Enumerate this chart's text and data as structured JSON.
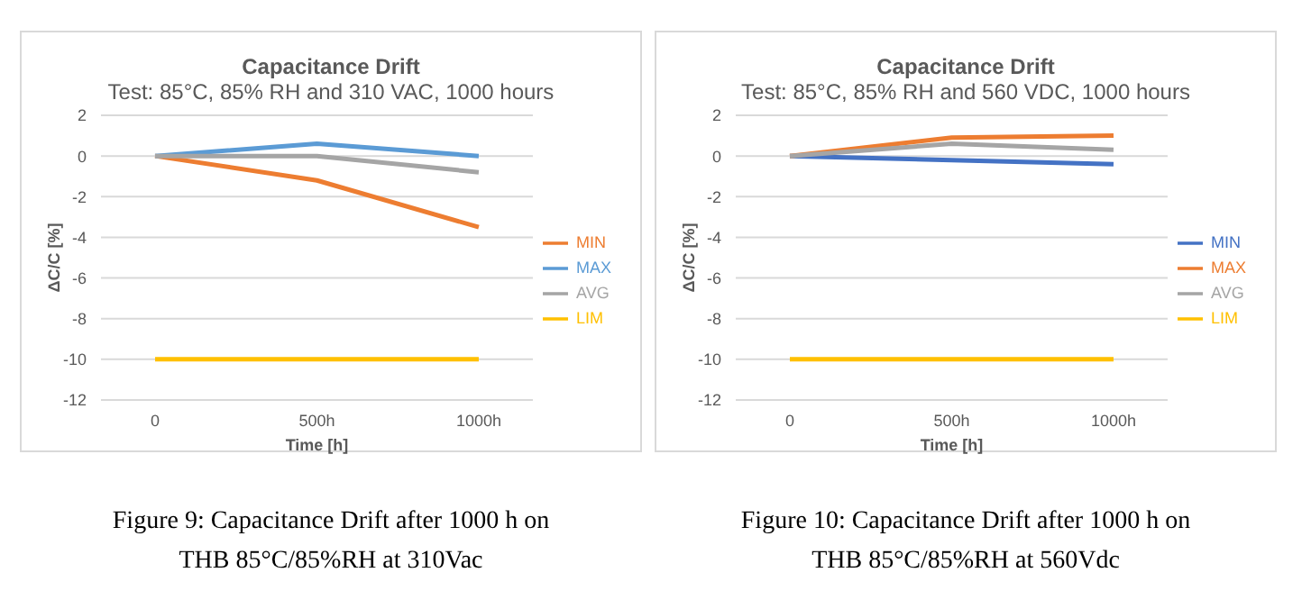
{
  "chart_data": [
    {
      "type": "line",
      "title": "Capacitance Drift",
      "subtitle": "Test: 85°C, 85% RH and 310 VAC, 1000 hours",
      "xlabel": "Time [h]",
      "ylabel": "ΔC/C [%]",
      "categories": [
        "0",
        "500h",
        "1000h"
      ],
      "series": [
        {
          "name": "MIN",
          "color": "#ed7d31",
          "values": [
            0,
            -1.2,
            -3.5
          ]
        },
        {
          "name": "MAX",
          "color": "#5b9bd5",
          "values": [
            0,
            0.6,
            0
          ]
        },
        {
          "name": "AVG",
          "color": "#a5a5a5",
          "values": [
            0,
            0,
            -0.8
          ]
        },
        {
          "name": "LIM",
          "color": "#ffc000",
          "values": [
            -10,
            -10,
            -10
          ]
        }
      ],
      "ylim": [
        -12,
        2
      ],
      "yticks": [
        -12,
        -10,
        -8,
        -6,
        -4,
        -2,
        0,
        2
      ],
      "grid": "y",
      "legend": "right",
      "marker": "none",
      "line_style": "solid",
      "annotations": [
        "Figure 9: Capacitance Drift after 1000 h on THB 85°C/85%RH at 310Vac"
      ]
    },
    {
      "type": "line",
      "title": "Capacitance Drift",
      "subtitle": "Test: 85°C, 85% RH and 560 VDC, 1000 hours",
      "xlabel": "Time [h]",
      "ylabel": "ΔC/C [%]",
      "categories": [
        "0",
        "500h",
        "1000h"
      ],
      "series": [
        {
          "name": "MIN",
          "color": "#4472c4",
          "values": [
            0,
            -0.2,
            -0.4
          ]
        },
        {
          "name": "MAX",
          "color": "#ed7d31",
          "values": [
            0,
            0.9,
            1
          ]
        },
        {
          "name": "AVG",
          "color": "#a5a5a5",
          "values": [
            0,
            0.6,
            0.3
          ]
        },
        {
          "name": "LIM",
          "color": "#ffc000",
          "values": [
            -10,
            -10,
            -10
          ]
        }
      ],
      "ylim": [
        -12,
        2
      ],
      "yticks": [
        -12,
        -10,
        -8,
        -6,
        -4,
        -2,
        0,
        2
      ],
      "grid": "y",
      "legend": "right",
      "marker": "none",
      "line_style": "solid",
      "annotations": [
        "Figure 10: Capacitance Drift after 1000 h on THB 85°C/85%RH at 560Vdc"
      ]
    }
  ]
}
